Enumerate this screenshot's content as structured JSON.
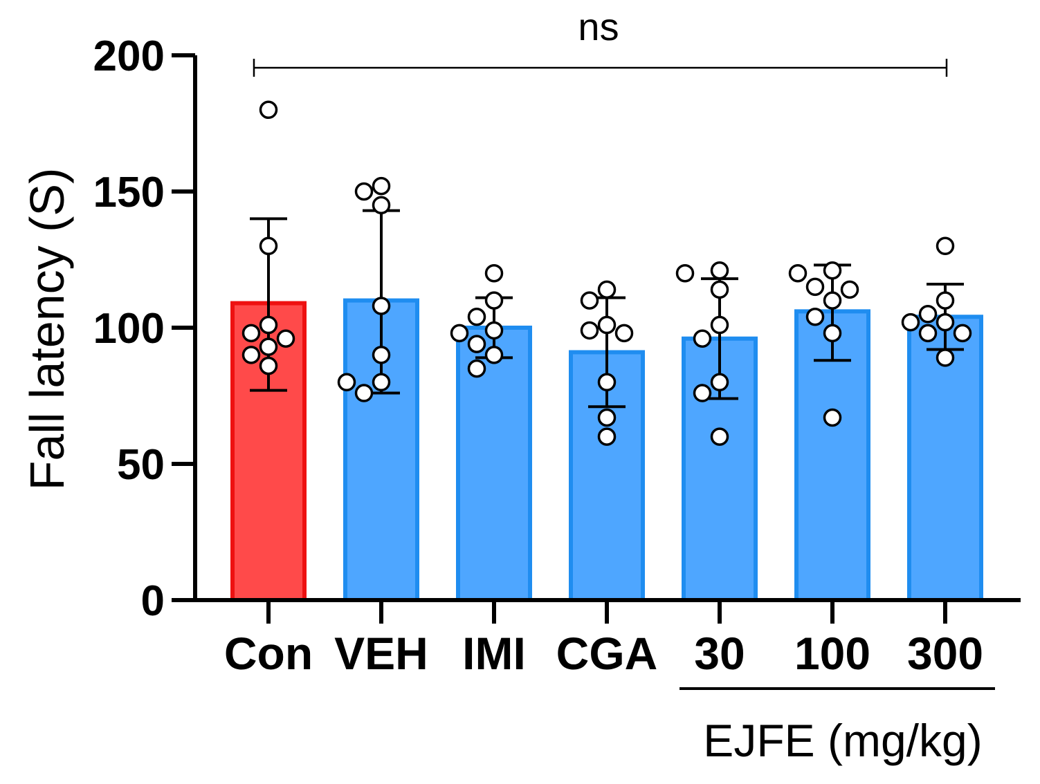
{
  "chart_data": {
    "type": "bar",
    "title": "",
    "xlabel": "",
    "ylabel": "Fall latency (S)",
    "ylim": [
      0,
      200
    ],
    "yticks": [
      "0",
      "50",
      "100",
      "150",
      "200"
    ],
    "grid": false,
    "categories": [
      "Con",
      "VEH",
      "IMI",
      "CGA",
      "30",
      "100",
      "300"
    ],
    "values": [
      109,
      110,
      100,
      91,
      96,
      106,
      104
    ],
    "error_upper": [
      140,
      143,
      111,
      111,
      118,
      123,
      116
    ],
    "error_lower": [
      77,
      76,
      89,
      71,
      74,
      88,
      92
    ],
    "bar_colors": [
      "#ff4a4a",
      "#4ea6ff",
      "#4ea6ff",
      "#4ea6ff",
      "#4ea6ff",
      "#4ea6ff",
      "#4ea6ff"
    ],
    "bar_edge_colors": [
      "#ee1111",
      "#1f8df0",
      "#1f8df0",
      "#1f8df0",
      "#1f8df0",
      "#1f8df0",
      "#1f8df0"
    ],
    "points": [
      [
        180,
        130,
        101,
        98,
        96,
        93,
        90,
        86
      ],
      [
        152,
        150,
        145,
        108,
        90,
        80,
        80,
        76
      ],
      [
        120,
        110,
        104,
        99,
        98,
        94,
        90,
        85
      ],
      [
        114,
        110,
        101,
        99,
        98,
        80,
        67,
        60
      ],
      [
        121,
        120,
        114,
        101,
        96,
        80,
        76,
        60
      ],
      [
        121,
        120,
        115,
        114,
        110,
        104,
        98,
        67
      ],
      [
        130,
        110,
        105,
        102,
        102,
        98,
        98,
        89
      ]
    ],
    "significance": {
      "label": "ns",
      "from": "Con",
      "to": "300"
    },
    "group_label": {
      "text": "EJFE (mg/kg)",
      "categories": [
        "30",
        "100",
        "300"
      ]
    }
  }
}
